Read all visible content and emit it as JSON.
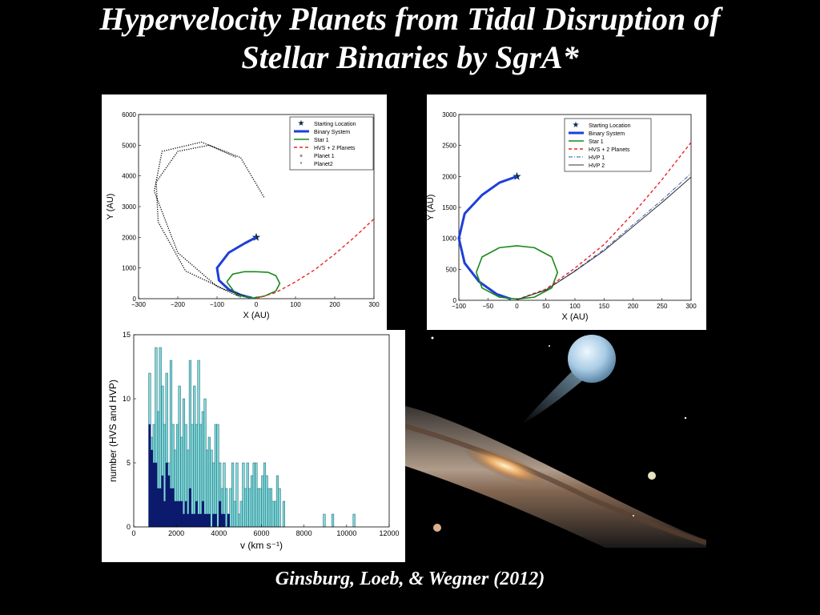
{
  "slide": {
    "title_line1": "Hypervelocity Planets from Tidal  Disruption of",
    "title_line2": "Stellar Binaries by SgrA*",
    "citation": "Ginsburg, Loeb, & Wegner (2012)"
  },
  "chart_data": [
    {
      "type": "line",
      "xlabel": "X (AU)",
      "ylabel": "Y (AU)",
      "xlim": [
        -300,
        300
      ],
      "ylim": [
        0,
        6000
      ],
      "xticks": [
        "−300",
        "−200",
        "−100",
        "0",
        "100",
        "200",
        "300"
      ],
      "yticks": [
        "0",
        "1000",
        "2000",
        "3000",
        "4000",
        "5000",
        "6000"
      ],
      "legend": [
        "Starting Location",
        "Binary System",
        "Star 1",
        "HVS + 2 Planets",
        "Planet 1",
        "Planet2"
      ],
      "legend_position": "top-right",
      "colors": {
        "binary": "#1f3fd8",
        "star1": "#1a8a1a",
        "hvs": "#e8262b",
        "planet": "#111111",
        "start": "#0b2a4a"
      },
      "series": [
        {
          "name": "Starting Location",
          "x": [
            0
          ],
          "y": [
            2000
          ]
        },
        {
          "name": "Binary System",
          "x": [
            0,
            -30,
            -70,
            -100,
            -95,
            -70,
            -40,
            -10
          ],
          "y": [
            2000,
            1800,
            1500,
            1000,
            600,
            300,
            120,
            20
          ]
        },
        {
          "name": "Star 1",
          "x": [
            -75,
            -60,
            -30,
            0,
            30,
            50,
            60,
            50,
            20,
            -10,
            -50,
            -75
          ],
          "y": [
            550,
            800,
            880,
            880,
            860,
            750,
            500,
            250,
            80,
            20,
            120,
            550
          ]
        },
        {
          "name": "HVS + 2 Planets",
          "x": [
            0,
            50,
            100,
            150,
            200,
            250,
            300
          ],
          "y": [
            10,
            200,
            550,
            950,
            1450,
            2000,
            2600
          ]
        },
        {
          "name": "Planet 1",
          "x": [
            -40,
            -100,
            -200,
            -260,
            -240,
            -140,
            -40,
            20
          ],
          "y": [
            50,
            400,
            1500,
            3500,
            4800,
            5100,
            4600,
            3300
          ]
        },
        {
          "name": "Planet2",
          "x": [
            -30,
            -80,
            -180,
            -250,
            -255,
            -200,
            -120,
            -50
          ],
          "y": [
            100,
            300,
            900,
            2500,
            3800,
            4800,
            5000,
            4600
          ]
        }
      ]
    },
    {
      "type": "line",
      "xlabel": "X (AU)",
      "ylabel": "Y (AU)",
      "xlim": [
        -100,
        300
      ],
      "ylim": [
        0,
        3000
      ],
      "xticks": [
        "−100",
        "−50",
        "0",
        "50",
        "100",
        "150",
        "200",
        "250",
        "300"
      ],
      "yticks": [
        "0",
        "500",
        "1000",
        "1500",
        "2000",
        "2500",
        "3000"
      ],
      "legend": [
        "Starting Location",
        "Binary System",
        "Star 1",
        "HVS + 2 Planets",
        "HVP 1",
        "HVP 2"
      ],
      "legend_position": "top-right",
      "series": [
        {
          "name": "Starting Location",
          "x": [
            0
          ],
          "y": [
            2000
          ]
        },
        {
          "name": "Binary System",
          "x": [
            0,
            -30,
            -60,
            -90,
            -100,
            -90,
            -65,
            -35,
            -10
          ],
          "y": [
            2000,
            1900,
            1700,
            1400,
            1000,
            600,
            300,
            100,
            20
          ]
        },
        {
          "name": "Star 1",
          "x": [
            -70,
            -60,
            -30,
            0,
            30,
            60,
            70,
            60,
            30,
            0,
            -30,
            -60,
            -70
          ],
          "y": [
            450,
            700,
            850,
            880,
            850,
            700,
            450,
            200,
            50,
            20,
            50,
            200,
            450
          ]
        },
        {
          "name": "HVS + 2 Planets",
          "x": [
            0,
            50,
            100,
            150,
            200,
            250,
            300
          ],
          "y": [
            10,
            180,
            520,
            900,
            1400,
            1950,
            2550
          ]
        },
        {
          "name": "HVP 1",
          "x": [
            0,
            50,
            100,
            150,
            200,
            250,
            300
          ],
          "y": [
            10,
            170,
            480,
            820,
            1220,
            1620,
            2050
          ]
        },
        {
          "name": "HVP 2",
          "x": [
            0,
            50,
            100,
            150,
            200,
            250,
            300
          ],
          "y": [
            10,
            165,
            470,
            800,
            1190,
            1580,
            1990
          ]
        }
      ]
    },
    {
      "type": "bar",
      "xlabel": "v (km s⁻¹)",
      "ylabel": "number  (HVS  and  HVP)",
      "xlim": [
        0,
        12000
      ],
      "ylim": [
        0,
        15
      ],
      "xticks": [
        "0",
        "2000",
        "4000",
        "6000",
        "8000",
        "10000",
        "12000"
      ],
      "yticks": [
        "0",
        "5",
        "10",
        "15"
      ],
      "bin_width": 100,
      "colors": {
        "hvp": "#7fd8d8",
        "hvs": "#0c1a6e"
      },
      "series": [
        {
          "name": "HVP",
          "bin_starts": [
            700,
            800,
            900,
            1000,
            1100,
            1200,
            1300,
            1400,
            1500,
            1600,
            1700,
            1800,
            1900,
            2000,
            2100,
            2200,
            2300,
            2400,
            2500,
            2600,
            2700,
            2800,
            2900,
            3000,
            3100,
            3200,
            3300,
            3400,
            3500,
            3600,
            3700,
            3800,
            3900,
            4000,
            4100,
            4200,
            4300,
            4400,
            4500,
            4600,
            4700,
            4800,
            4900,
            5000,
            5100,
            5200,
            5300,
            5400,
            5500,
            5600,
            5700,
            5800,
            5900,
            6000,
            6100,
            6200,
            6300,
            6400,
            6500,
            6600,
            6700,
            6800,
            6900,
            7000,
            8900,
            9300,
            10300
          ],
          "values": [
            12,
            7,
            8,
            14,
            9,
            14,
            11,
            8,
            12,
            5,
            13,
            8,
            6,
            8,
            11,
            7,
            10,
            8,
            6,
            13,
            8,
            11,
            8,
            13,
            8,
            9,
            10,
            6,
            7,
            6,
            5,
            8,
            8,
            5,
            3,
            5,
            3,
            1,
            3,
            5,
            2,
            5,
            1,
            2,
            5,
            3,
            5,
            3,
            4,
            5,
            5,
            3,
            3,
            4,
            5,
            4,
            3,
            3,
            2,
            2,
            4,
            3,
            0,
            2,
            1,
            1,
            1
          ]
        },
        {
          "name": "HVS",
          "bin_starts": [
            700,
            800,
            900,
            1000,
            1100,
            1200,
            1300,
            1400,
            1500,
            1600,
            1700,
            1800,
            1900,
            2000,
            2100,
            2200,
            2300,
            2400,
            2500,
            2600,
            2700,
            2800,
            2900,
            3000,
            3100,
            3200,
            3300,
            3400,
            3500,
            3600,
            3700,
            3800,
            3900,
            4000,
            4100,
            4200,
            4300,
            4400
          ],
          "values": [
            8,
            6,
            5,
            5,
            3,
            3,
            4,
            2,
            5,
            4,
            3,
            3,
            2,
            2,
            2,
            2,
            1,
            2,
            1,
            3,
            1,
            1,
            2,
            1,
            1,
            2,
            1,
            1,
            1,
            0,
            1,
            1,
            0,
            2,
            1,
            1,
            0,
            1
          ]
        }
      ]
    }
  ]
}
